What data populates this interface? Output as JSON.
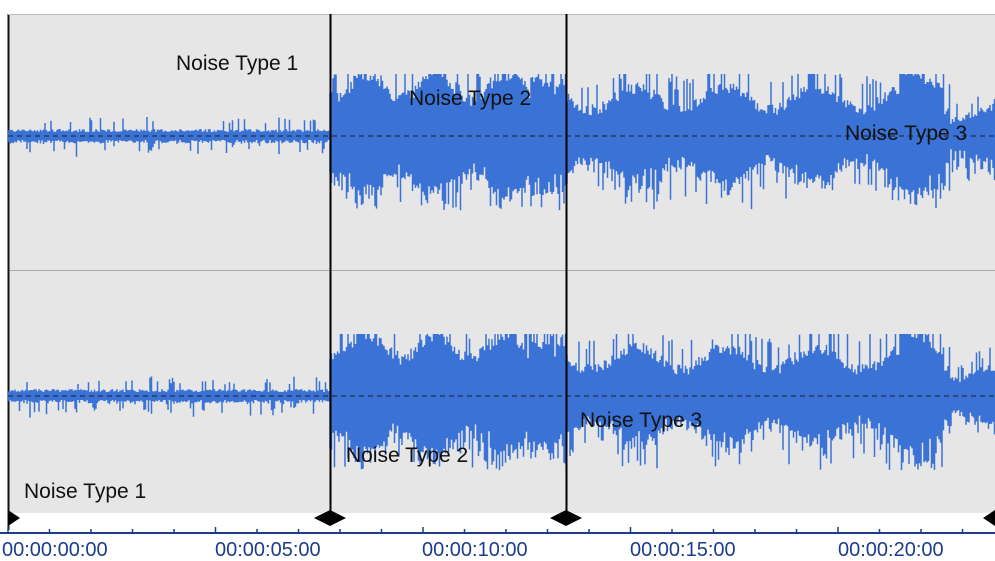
{
  "labels": {
    "top_label_1": "Noise Type 1",
    "top_label_2": "Noise Type 2",
    "top_label_3": "Noise Type 3",
    "bottom_label_1": "Noise Type 1",
    "bottom_label_2": "Noise Type 2",
    "bottom_label_3": "Noise Type 3"
  },
  "timeline": {
    "ticks": [
      "00:00:00:00",
      "00:00:05:00",
      "00:00:10:00",
      "00:00:15:00",
      "00:00:20:00"
    ]
  },
  "colors": {
    "waveform": "#3a72d6",
    "background": "#e6e6e6",
    "marker": "#000000",
    "timeline_text": "#1d3d8a"
  }
}
